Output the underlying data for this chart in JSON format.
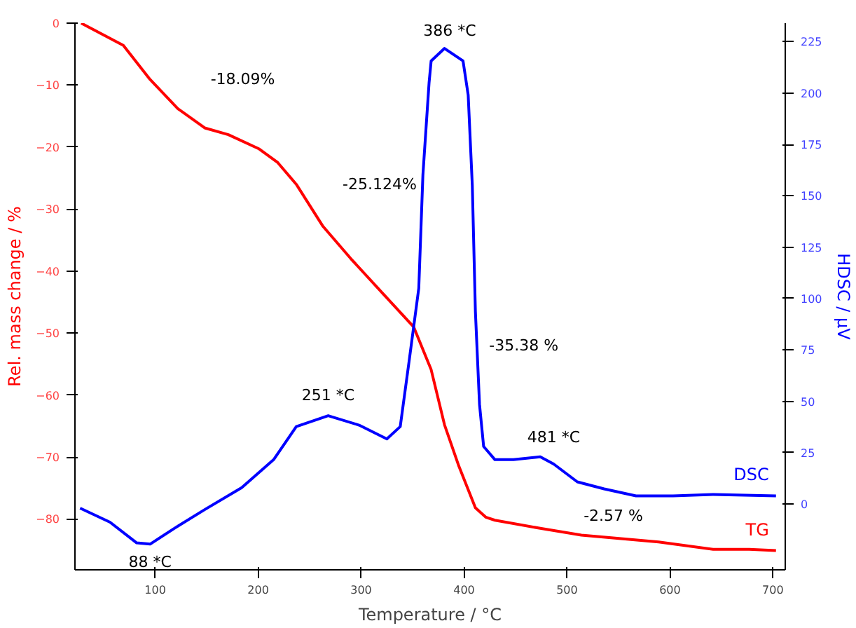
{
  "chart_data": {
    "type": "line",
    "xlabel": "Temperature / °C",
    "ylabel": "Rel. mass change / %",
    "y2label": "HDSC / µV",
    "xlim": [
      22,
      712
    ],
    "xticks": [
      100,
      200,
      300,
      400,
      500,
      600,
      700
    ],
    "ylim": [
      -88.2,
      0
    ],
    "yticks": [
      -80,
      -70,
      -60,
      -50,
      -40,
      -30,
      -20,
      -10,
      0
    ],
    "y2lim": [
      -32,
      234
    ],
    "y2ticks": [
      0,
      25,
      50,
      75,
      100,
      125,
      150,
      175,
      200,
      225
    ],
    "grid": false,
    "legend": false,
    "line_style": "solid",
    "marker": "none",
    "series": [
      {
        "name": "TG",
        "color": "#ff0000",
        "x": [
          28,
          69,
          95,
          122,
          148,
          171,
          201,
          219,
          237,
          263,
          290,
          321,
          351,
          368,
          381,
          395,
          411,
          421,
          430,
          474,
          514,
          589,
          642,
          677,
          703
        ],
        "values": [
          0,
          -3.6,
          -9.1,
          -13.8,
          -16.9,
          -18.0,
          -20.3,
          -22.5,
          -26,
          -32.8,
          -38,
          -43.6,
          -49,
          -55.9,
          -64.8,
          -71.5,
          -78.2,
          -79.7,
          -80.2,
          -81.5,
          -82.6,
          -83.7,
          -84.9,
          -84.9,
          -85.1
        ]
      },
      {
        "name": "DSC",
        "color": "#0000ff",
        "axis": "y2",
        "x": [
          27,
          56,
          82,
          95,
          118,
          148,
          184,
          215,
          237,
          268,
          298,
          325,
          338,
          347,
          356,
          360,
          366,
          368,
          381,
          399,
          404,
          408,
          411,
          415,
          419,
          430,
          448,
          474,
          487,
          510,
          536,
          567,
          603,
          642,
          703
        ],
        "values": [
          -2,
          -8.8,
          -18.9,
          -19.5,
          -12,
          -2.7,
          8,
          21.6,
          37.7,
          43,
          38.4,
          31.7,
          37.7,
          71,
          105,
          160,
          205,
          215.6,
          221.7,
          215.6,
          199,
          155,
          93.7,
          48.5,
          28,
          21.6,
          21.6,
          23,
          19.5,
          10.8,
          7.4,
          4,
          4,
          4.7,
          4
        ]
      }
    ],
    "annotations": [
      "-18.09%",
      "-25.124%",
      "-35.38 %",
      "-2.57 %",
      "386 *C",
      "251 *C",
      "88 *C",
      "481 *C"
    ]
  }
}
